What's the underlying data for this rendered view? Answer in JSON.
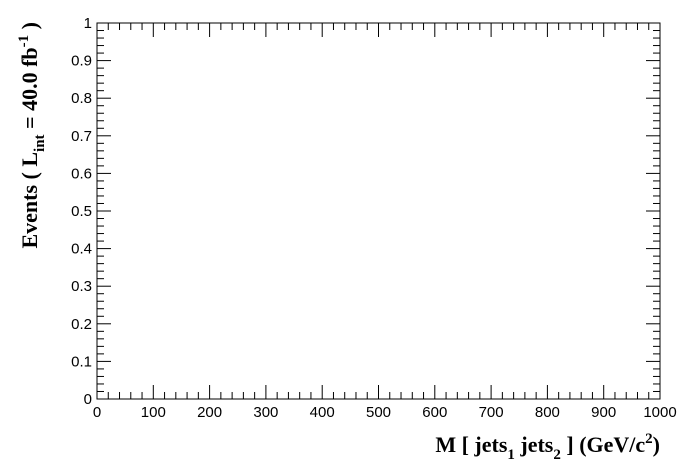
{
  "chart_data": {
    "type": "bar",
    "title": "",
    "xlabel": {
      "main": "M [ jets",
      "sub1": "1",
      "mid": " jets",
      "sub2": "2",
      "tail": " ] (GeV/c",
      "sup": "2",
      "close": ")"
    },
    "ylabel": {
      "main": "Events  ( L",
      "sub": "int",
      "mid": " = 40.0 fb",
      "sup": "-1",
      "close": " )"
    },
    "xlim": [
      0,
      1000
    ],
    "ylim": [
      0,
      1
    ],
    "x_major_ticks": [
      0,
      100,
      200,
      300,
      400,
      500,
      600,
      700,
      800,
      900,
      1000
    ],
    "x_tick_labels": [
      "0",
      "100",
      "200",
      "300",
      "400",
      "500",
      "600",
      "700",
      "800",
      "900",
      "1000"
    ],
    "y_major_ticks": [
      0,
      0.1,
      0.2,
      0.3,
      0.4,
      0.5,
      0.6,
      0.7,
      0.8,
      0.9,
      1
    ],
    "y_tick_labels": [
      "0",
      "0.1",
      "0.2",
      "0.3",
      "0.4",
      "0.5",
      "0.6",
      "0.7",
      "0.8",
      "0.9",
      "1"
    ],
    "x_minor_per_major": 5,
    "y_minor_per_major": 5,
    "grid": false,
    "series": [],
    "colors": {
      "frame": "#000000",
      "background": "#ffffff"
    }
  }
}
